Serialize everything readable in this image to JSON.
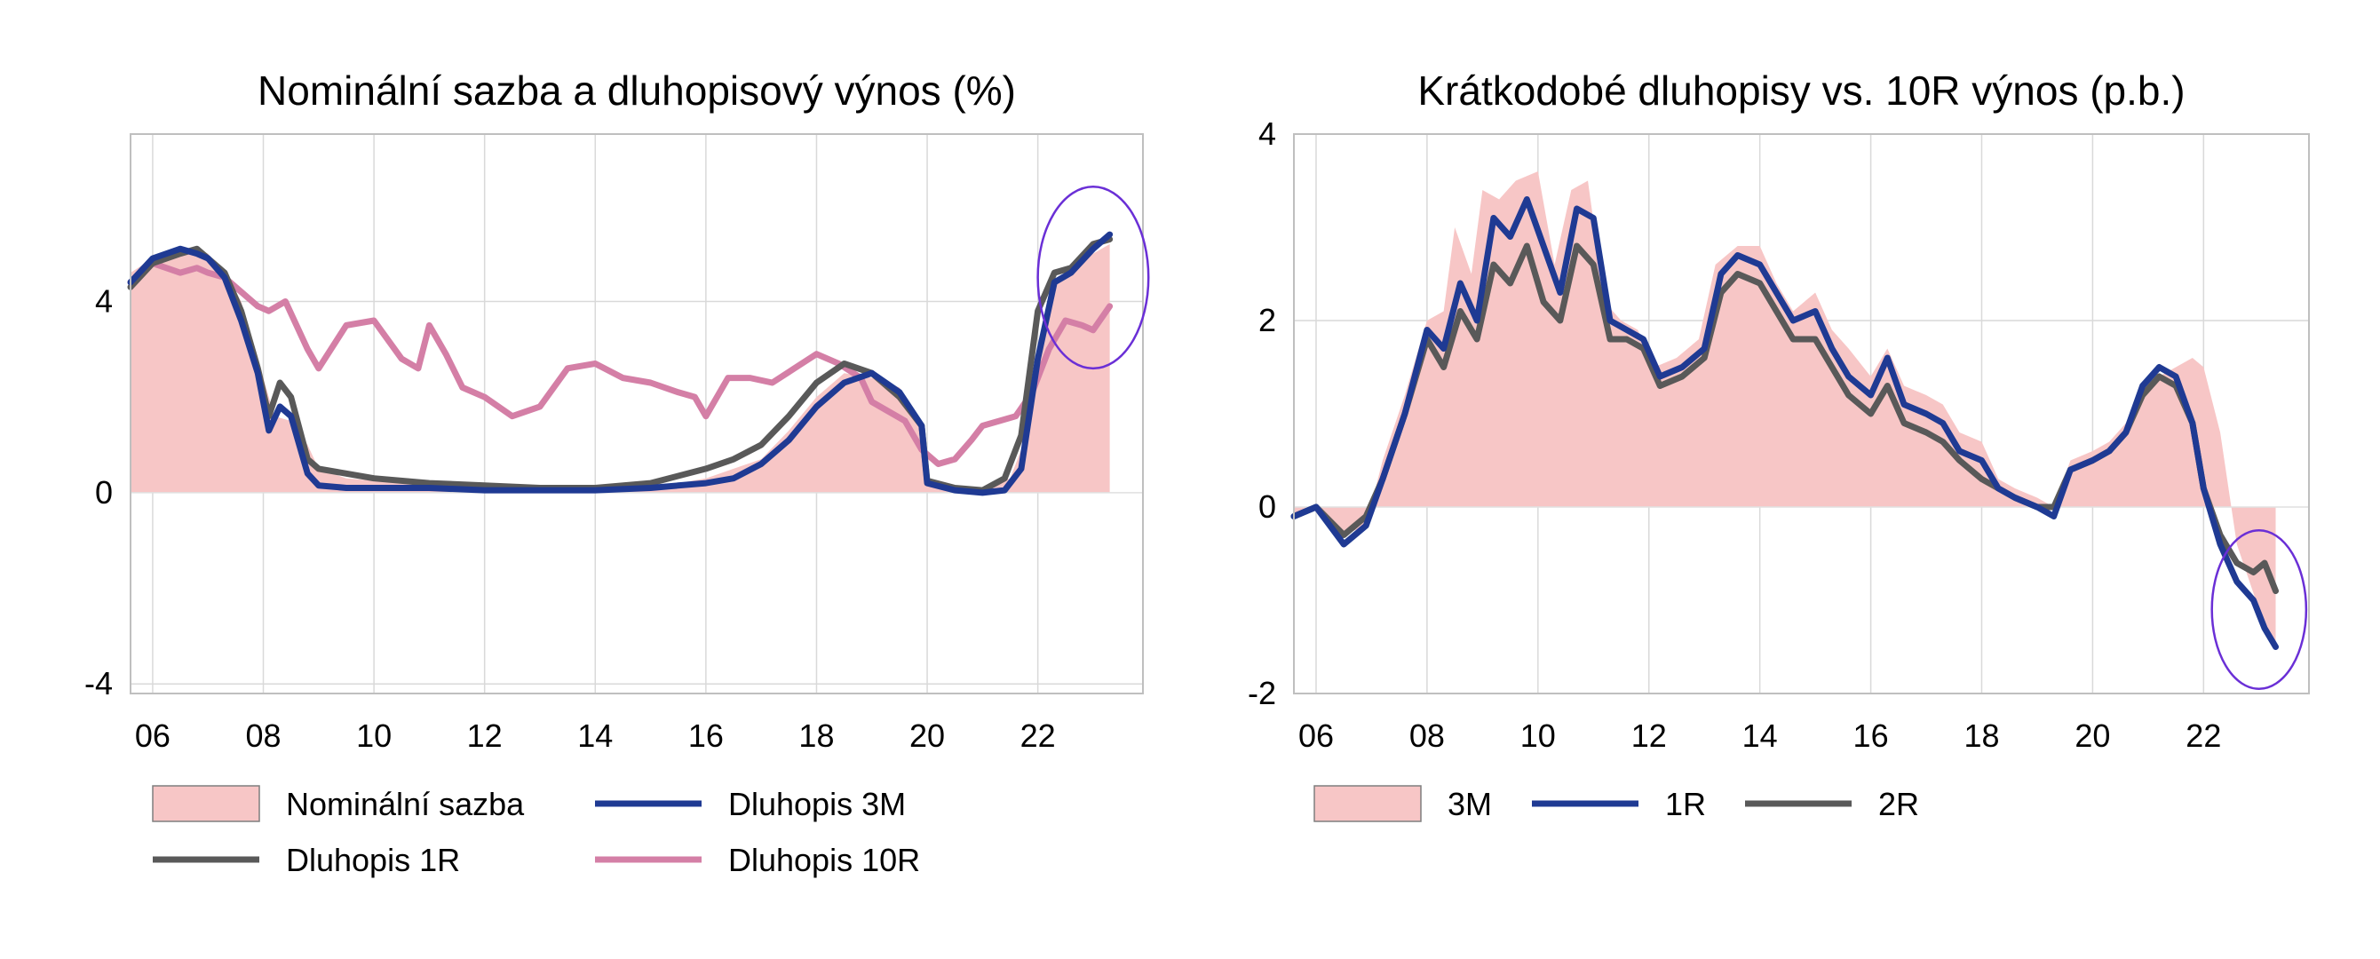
{
  "charts": [
    {
      "title": "Nominální sazba a dluhopisový výnos (%)",
      "ylim": [
        -4.2,
        7.5
      ],
      "yticks": [
        4,
        0,
        -4
      ],
      "ytick_labels": [
        "4",
        "0",
        "-4"
      ],
      "xlim": [
        2005.6,
        2023.9
      ],
      "xticks": [
        2006,
        2008,
        2010,
        2012,
        2014,
        2016,
        2018,
        2020,
        2022
      ],
      "xtick_labels": [
        "06",
        "08",
        "10",
        "12",
        "14",
        "16",
        "18",
        "20",
        "22"
      ],
      "grid": true,
      "legend": [
        {
          "label": "Nominální sazba",
          "kind": "area"
        },
        {
          "label": "Dluhopis 3M",
          "kind": "line"
        },
        {
          "label": "Dluhopis 1R",
          "kind": "line"
        },
        {
          "label": "Dluhopis 10R",
          "kind": "line"
        }
      ],
      "highlight_ellipse": {
        "x": 2023.0,
        "y": 4.5,
        "rx_years": 1.0,
        "ry_units": 1.9
      }
    },
    {
      "title": "Krátkodobé dluhopisy vs. 10R výnos (p.b.)",
      "ylim": [
        -2.0,
        4.0
      ],
      "yticks": [
        4,
        2,
        0,
        -2
      ],
      "ytick_labels": [
        "4",
        "2",
        "0",
        "-2"
      ],
      "xlim": [
        2005.6,
        2023.9
      ],
      "xticks": [
        2006,
        2008,
        2010,
        2012,
        2014,
        2016,
        2018,
        2020,
        2022
      ],
      "xtick_labels": [
        "06",
        "08",
        "10",
        "12",
        "14",
        "16",
        "18",
        "20",
        "22"
      ],
      "grid": true,
      "legend": [
        {
          "label": "3M",
          "kind": "area"
        },
        {
          "label": "1R",
          "kind": "line"
        },
        {
          "label": "2R",
          "kind": "line"
        }
      ],
      "highlight_ellipse": {
        "x": 2023.0,
        "y": -1.1,
        "rx_years": 0.85,
        "ry_units": 0.85
      }
    }
  ],
  "chart_data": [
    {
      "type": "line",
      "title": "Nominální sazba a dluhopisový výnos (%)",
      "xlabel": "",
      "ylabel": "",
      "ylim": [
        -4.2,
        7.5
      ],
      "series": [
        {
          "name": "Nominální sazba",
          "type": "area",
          "color": "#f7c6c6",
          "x": [
            2005.6,
            2006.0,
            2006.5,
            2006.8,
            2007.0,
            2007.3,
            2007.6,
            2007.9,
            2008.2,
            2008.5,
            2008.8,
            2009.0,
            2009.5,
            2010.0,
            2011.0,
            2012.0,
            2013.0,
            2014.0,
            2015.0,
            2016.0,
            2016.5,
            2017.0,
            2017.5,
            2018.0,
            2018.5,
            2019.0,
            2019.5,
            2019.9,
            2020.0,
            2020.5,
            2021.0,
            2021.5,
            2021.7,
            2022.0,
            2022.3,
            2022.6,
            2023.0,
            2023.3
          ],
          "values": [
            4.6,
            4.9,
            5.0,
            5.1,
            5.0,
            4.6,
            4.0,
            2.8,
            1.6,
            1.5,
            1.0,
            0.5,
            0.3,
            0.25,
            0.2,
            0.15,
            0.1,
            0.1,
            0.1,
            0.3,
            0.5,
            0.7,
            1.3,
            2.0,
            2.5,
            2.4,
            2.2,
            1.5,
            0.25,
            0.1,
            0.1,
            0.3,
            0.9,
            3.0,
            4.4,
            4.6,
            5.0,
            5.2
          ]
        },
        {
          "name": "Dluhopis 3M",
          "color": "#1f3a93",
          "x": [
            2005.6,
            2006.0,
            2006.5,
            2006.8,
            2007.0,
            2007.3,
            2007.6,
            2007.9,
            2008.1,
            2008.3,
            2008.5,
            2008.8,
            2009.0,
            2009.5,
            2010.0,
            2011.0,
            2012.0,
            2013.0,
            2014.0,
            2015.0,
            2016.0,
            2016.5,
            2017.0,
            2017.5,
            2018.0,
            2018.5,
            2019.0,
            2019.5,
            2019.9,
            2020.0,
            2020.5,
            2021.0,
            2021.4,
            2021.7,
            2022.0,
            2022.3,
            2022.6,
            2023.0,
            2023.3
          ],
          "values": [
            4.4,
            4.9,
            5.1,
            5.0,
            4.9,
            4.5,
            3.6,
            2.5,
            1.3,
            1.8,
            1.6,
            0.4,
            0.15,
            0.1,
            0.1,
            0.1,
            0.05,
            0.05,
            0.05,
            0.1,
            0.2,
            0.3,
            0.6,
            1.1,
            1.8,
            2.3,
            2.5,
            2.1,
            1.4,
            0.2,
            0.05,
            0.0,
            0.05,
            0.5,
            2.8,
            4.4,
            4.6,
            5.1,
            5.4
          ]
        },
        {
          "name": "Dluhopis 1R",
          "color": "#595959",
          "x": [
            2005.6,
            2006.0,
            2006.5,
            2006.8,
            2007.0,
            2007.3,
            2007.6,
            2007.9,
            2008.1,
            2008.3,
            2008.5,
            2008.8,
            2009.0,
            2009.5,
            2010.0,
            2011.0,
            2012.0,
            2013.0,
            2014.0,
            2015.0,
            2016.0,
            2016.5,
            2017.0,
            2017.5,
            2018.0,
            2018.5,
            2019.0,
            2019.5,
            2019.9,
            2020.0,
            2020.5,
            2021.0,
            2021.4,
            2021.7,
            2022.0,
            2022.3,
            2022.6,
            2023.0,
            2023.3
          ],
          "values": [
            4.3,
            4.8,
            5.0,
            5.1,
            4.9,
            4.6,
            3.8,
            2.6,
            1.6,
            2.3,
            2.0,
            0.7,
            0.5,
            0.4,
            0.3,
            0.2,
            0.15,
            0.1,
            0.1,
            0.2,
            0.5,
            0.7,
            1.0,
            1.6,
            2.3,
            2.7,
            2.5,
            2.0,
            1.4,
            0.25,
            0.1,
            0.05,
            0.3,
            1.2,
            3.8,
            4.6,
            4.7,
            5.2,
            5.3
          ]
        },
        {
          "name": "Dluhopis 10R",
          "color": "#d47fa6",
          "x": [
            2005.6,
            2006.0,
            2006.5,
            2006.8,
            2007.0,
            2007.3,
            2007.6,
            2007.9,
            2008.1,
            2008.4,
            2008.8,
            2009.0,
            2009.5,
            2010.0,
            2010.5,
            2010.8,
            2011.0,
            2011.3,
            2011.6,
            2012.0,
            2012.5,
            2013.0,
            2013.5,
            2014.0,
            2014.5,
            2015.0,
            2015.5,
            2015.8,
            2016.0,
            2016.4,
            2016.8,
            2017.2,
            2017.6,
            2018.0,
            2018.4,
            2018.8,
            2019.0,
            2019.3,
            2019.6,
            2019.9,
            2020.2,
            2020.5,
            2020.8,
            2021.0,
            2021.3,
            2021.6,
            2021.9,
            2022.2,
            2022.5,
            2022.8,
            2023.0,
            2023.3
          ],
          "values": [
            4.4,
            4.8,
            4.6,
            4.7,
            4.6,
            4.5,
            4.2,
            3.9,
            3.8,
            4.0,
            3.0,
            2.6,
            3.5,
            3.6,
            2.8,
            2.6,
            3.5,
            2.9,
            2.2,
            2.0,
            1.6,
            1.8,
            2.6,
            2.7,
            2.4,
            2.3,
            2.1,
            2.0,
            1.6,
            2.4,
            2.4,
            2.3,
            2.6,
            2.9,
            2.7,
            2.4,
            1.9,
            1.7,
            1.5,
            0.9,
            0.6,
            0.7,
            1.1,
            1.4,
            1.5,
            1.6,
            2.1,
            3.0,
            3.6,
            3.5,
            3.4,
            3.9
          ]
        }
      ]
    },
    {
      "type": "line",
      "title": "Krátkodobé dluhopisy vs. 10R výnos (p.b.)",
      "xlabel": "",
      "ylabel": "",
      "ylim": [
        -2.0,
        4.0
      ],
      "series": [
        {
          "name": "3M",
          "type": "area",
          "color": "#f7c6c6",
          "x": [
            2005.6,
            2006.0,
            2006.5,
            2006.9,
            2007.2,
            2007.6,
            2008.0,
            2008.3,
            2008.5,
            2008.8,
            2009.0,
            2009.3,
            2009.6,
            2010.0,
            2010.3,
            2010.6,
            2010.9,
            2011.2,
            2011.5,
            2011.8,
            2012.1,
            2012.5,
            2012.9,
            2013.2,
            2013.6,
            2014.0,
            2014.3,
            2014.6,
            2015.0,
            2015.3,
            2015.6,
            2016.0,
            2016.3,
            2016.6,
            2017.0,
            2017.3,
            2017.6,
            2018.0,
            2018.3,
            2018.6,
            2019.0,
            2019.3,
            2019.6,
            2020.0,
            2020.3,
            2020.6,
            2020.9,
            2021.2,
            2021.5,
            2021.8,
            2022.0,
            2022.3,
            2022.6,
            2023.0,
            2023.3
          ],
          "values": [
            -0.1,
            0.0,
            -0.3,
            -0.2,
            0.5,
            1.2,
            2.0,
            2.1,
            3.0,
            2.5,
            3.4,
            3.3,
            3.5,
            3.6,
            2.6,
            3.4,
            3.5,
            2.2,
            2.0,
            1.9,
            1.5,
            1.6,
            1.8,
            2.6,
            2.8,
            2.8,
            2.4,
            2.1,
            2.3,
            1.9,
            1.7,
            1.4,
            1.7,
            1.3,
            1.2,
            1.1,
            0.8,
            0.7,
            0.3,
            0.2,
            0.1,
            0.0,
            0.5,
            0.6,
            0.7,
            0.9,
            1.3,
            1.4,
            1.5,
            1.6,
            1.5,
            0.8,
            -0.4,
            -1.1,
            -1.5
          ]
        },
        {
          "name": "1R",
          "color": "#1f3a93",
          "x": [
            2005.6,
            2006.0,
            2006.5,
            2006.9,
            2007.2,
            2007.6,
            2008.0,
            2008.3,
            2008.6,
            2008.9,
            2009.2,
            2009.5,
            2009.8,
            2010.1,
            2010.4,
            2010.7,
            2011.0,
            2011.3,
            2011.6,
            2011.9,
            2012.2,
            2012.6,
            2013.0,
            2013.3,
            2013.6,
            2014.0,
            2014.3,
            2014.6,
            2015.0,
            2015.3,
            2015.6,
            2016.0,
            2016.3,
            2016.6,
            2017.0,
            2017.3,
            2017.6,
            2018.0,
            2018.3,
            2018.6,
            2019.0,
            2019.3,
            2019.6,
            2020.0,
            2020.3,
            2020.6,
            2020.9,
            2021.2,
            2021.5,
            2021.8,
            2022.0,
            2022.3,
            2022.6,
            2022.9,
            2023.1,
            2023.3
          ],
          "values": [
            -0.1,
            0.0,
            -0.4,
            -0.2,
            0.3,
            1.0,
            1.9,
            1.7,
            2.4,
            2.0,
            3.1,
            2.9,
            3.3,
            2.8,
            2.3,
            3.2,
            3.1,
            2.0,
            1.9,
            1.8,
            1.4,
            1.5,
            1.7,
            2.5,
            2.7,
            2.6,
            2.3,
            2.0,
            2.1,
            1.7,
            1.4,
            1.2,
            1.6,
            1.1,
            1.0,
            0.9,
            0.6,
            0.5,
            0.2,
            0.1,
            0.0,
            -0.1,
            0.4,
            0.5,
            0.6,
            0.8,
            1.3,
            1.5,
            1.4,
            0.9,
            0.2,
            -0.4,
            -0.8,
            -1.0,
            -1.3,
            -1.5
          ]
        },
        {
          "name": "2R",
          "color": "#595959",
          "x": [
            2005.6,
            2006.0,
            2006.5,
            2006.9,
            2007.2,
            2007.6,
            2008.0,
            2008.3,
            2008.6,
            2008.9,
            2009.2,
            2009.5,
            2009.8,
            2010.1,
            2010.4,
            2010.7,
            2011.0,
            2011.3,
            2011.6,
            2011.9,
            2012.2,
            2012.6,
            2013.0,
            2013.3,
            2013.6,
            2014.0,
            2014.3,
            2014.6,
            2015.0,
            2015.3,
            2015.6,
            2016.0,
            2016.3,
            2016.6,
            2017.0,
            2017.3,
            2017.6,
            2018.0,
            2018.3,
            2018.6,
            2019.0,
            2019.3,
            2019.6,
            2020.0,
            2020.3,
            2020.6,
            2020.9,
            2021.2,
            2021.5,
            2021.8,
            2022.0,
            2022.3,
            2022.6,
            2022.9,
            2023.1,
            2023.3
          ],
          "values": [
            -0.1,
            0.0,
            -0.3,
            -0.1,
            0.3,
            1.0,
            1.8,
            1.5,
            2.1,
            1.8,
            2.6,
            2.4,
            2.8,
            2.2,
            2.0,
            2.8,
            2.6,
            1.8,
            1.8,
            1.7,
            1.3,
            1.4,
            1.6,
            2.3,
            2.5,
            2.4,
            2.1,
            1.8,
            1.8,
            1.5,
            1.2,
            1.0,
            1.3,
            0.9,
            0.8,
            0.7,
            0.5,
            0.3,
            0.2,
            0.1,
            0.0,
            0.0,
            0.4,
            0.5,
            0.6,
            0.8,
            1.2,
            1.4,
            1.3,
            0.9,
            0.2,
            -0.3,
            -0.6,
            -0.7,
            -0.6,
            -0.9
          ]
        }
      ]
    }
  ]
}
